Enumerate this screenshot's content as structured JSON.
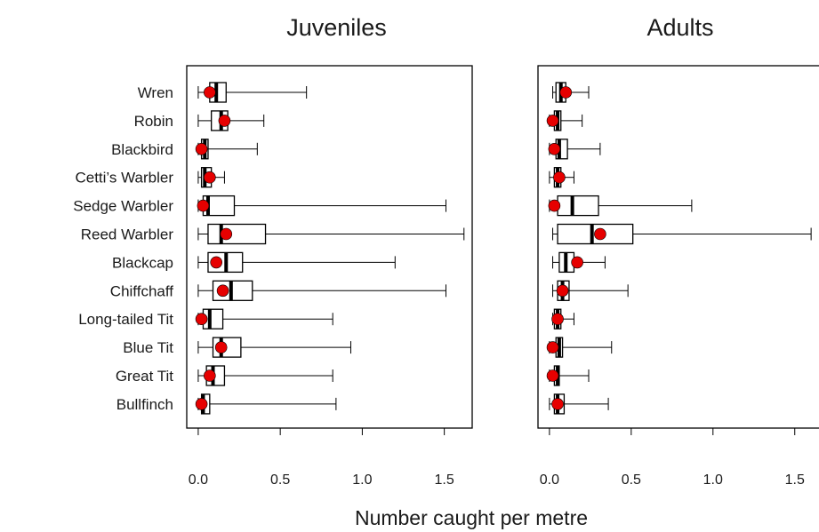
{
  "chart_data": {
    "type": "boxplot",
    "xlabel": "Number caught per metre",
    "xticks": [
      0.0,
      0.5,
      1.0,
      1.5
    ],
    "xtick_labels": [
      "0.0",
      "0.5",
      "1.0",
      "1.5"
    ],
    "xlim": [
      -0.07,
      1.67
    ],
    "categories": [
      "Wren",
      "Robin",
      "Blackbird",
      "Cetti’s Warbler",
      "Sedge Warbler",
      "Reed Warbler",
      "Blackcap",
      "Chiffchaff",
      "Long-tailed Tit",
      "Blue Tit",
      "Great Tit",
      "Bullfinch"
    ],
    "point_color": "#e60000",
    "panels": [
      {
        "title": "Juveniles",
        "boxes": [
          {
            "whisker_low": 0.0,
            "q1": 0.07,
            "median": 0.11,
            "q3": 0.17,
            "whisker_high": 0.66,
            "mean": 0.07
          },
          {
            "whisker_low": 0.0,
            "q1": 0.08,
            "median": 0.14,
            "q3": 0.18,
            "whisker_high": 0.4,
            "mean": 0.16
          },
          {
            "whisker_low": 0.0,
            "q1": 0.02,
            "median": 0.04,
            "q3": 0.06,
            "whisker_high": 0.36,
            "mean": 0.02
          },
          {
            "whisker_low": 0.0,
            "q1": 0.02,
            "median": 0.04,
            "q3": 0.08,
            "whisker_high": 0.16,
            "mean": 0.07
          },
          {
            "whisker_low": 0.0,
            "q1": 0.03,
            "median": 0.06,
            "q3": 0.22,
            "whisker_high": 1.51,
            "mean": 0.03
          },
          {
            "whisker_low": 0.0,
            "q1": 0.06,
            "median": 0.14,
            "q3": 0.41,
            "whisker_high": 1.62,
            "mean": 0.17
          },
          {
            "whisker_low": 0.0,
            "q1": 0.06,
            "median": 0.17,
            "q3": 0.27,
            "whisker_high": 1.2,
            "mean": 0.11
          },
          {
            "whisker_low": 0.0,
            "q1": 0.09,
            "median": 0.2,
            "q3": 0.33,
            "whisker_high": 1.51,
            "mean": 0.15
          },
          {
            "whisker_low": 0.0,
            "q1": 0.03,
            "median": 0.07,
            "q3": 0.15,
            "whisker_high": 0.82,
            "mean": 0.02
          },
          {
            "whisker_low": 0.0,
            "q1": 0.09,
            "median": 0.14,
            "q3": 0.26,
            "whisker_high": 0.93,
            "mean": 0.14
          },
          {
            "whisker_low": 0.0,
            "q1": 0.05,
            "median": 0.09,
            "q3": 0.16,
            "whisker_high": 0.82,
            "mean": 0.07
          },
          {
            "whisker_low": 0.0,
            "q1": 0.02,
            "median": 0.03,
            "q3": 0.07,
            "whisker_high": 0.84,
            "mean": 0.02
          }
        ]
      },
      {
        "title": "Adults",
        "boxes": [
          {
            "whisker_low": 0.02,
            "q1": 0.04,
            "median": 0.07,
            "q3": 0.1,
            "whisker_high": 0.24,
            "mean": 0.1
          },
          {
            "whisker_low": 0.0,
            "q1": 0.03,
            "median": 0.05,
            "q3": 0.07,
            "whisker_high": 0.2,
            "mean": 0.02
          },
          {
            "whisker_low": 0.0,
            "q1": 0.04,
            "median": 0.06,
            "q3": 0.11,
            "whisker_high": 0.31,
            "mean": 0.03
          },
          {
            "whisker_low": 0.0,
            "q1": 0.03,
            "median": 0.05,
            "q3": 0.07,
            "whisker_high": 0.15,
            "mean": 0.06
          },
          {
            "whisker_low": 0.0,
            "q1": 0.05,
            "median": 0.14,
            "q3": 0.3,
            "whisker_high": 0.87,
            "mean": 0.03
          },
          {
            "whisker_low": 0.02,
            "q1": 0.05,
            "median": 0.26,
            "q3": 0.51,
            "whisker_high": 1.6,
            "mean": 0.31
          },
          {
            "whisker_low": 0.02,
            "q1": 0.06,
            "median": 0.1,
            "q3": 0.15,
            "whisker_high": 0.34,
            "mean": 0.17
          },
          {
            "whisker_low": 0.02,
            "q1": 0.05,
            "median": 0.08,
            "q3": 0.12,
            "whisker_high": 0.48,
            "mean": 0.08
          },
          {
            "whisker_low": 0.02,
            "q1": 0.03,
            "median": 0.05,
            "q3": 0.07,
            "whisker_high": 0.15,
            "mean": 0.05
          },
          {
            "whisker_low": 0.0,
            "q1": 0.04,
            "median": 0.06,
            "q3": 0.08,
            "whisker_high": 0.38,
            "mean": 0.02
          },
          {
            "whisker_low": 0.0,
            "q1": 0.03,
            "median": 0.05,
            "q3": 0.06,
            "whisker_high": 0.24,
            "mean": 0.02
          },
          {
            "whisker_low": 0.0,
            "q1": 0.03,
            "median": 0.05,
            "q3": 0.09,
            "whisker_high": 0.36,
            "mean": 0.05
          }
        ]
      }
    ]
  }
}
